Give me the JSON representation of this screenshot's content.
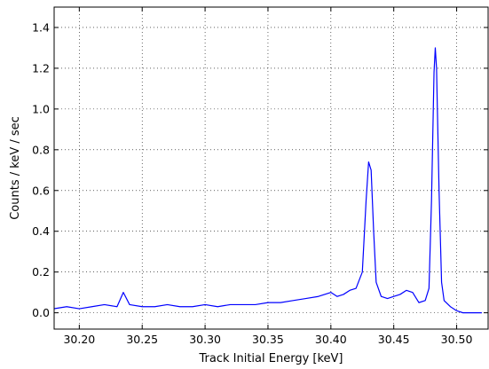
{
  "chart_data": {
    "type": "line",
    "title": "",
    "xlabel": "Track Initial Energy [keV]",
    "ylabel": "Counts / keV / sec",
    "xlim": [
      30.18,
      30.525
    ],
    "ylim": [
      -0.08,
      1.5
    ],
    "x_ticks": [
      30.2,
      30.25,
      30.3,
      30.35,
      30.4,
      30.45,
      30.5
    ],
    "x_tick_labels": [
      "30.20",
      "30.25",
      "30.30",
      "30.35",
      "30.40",
      "30.45",
      "30.50"
    ],
    "y_ticks": [
      0.0,
      0.2,
      0.4,
      0.6,
      0.8,
      1.0,
      1.2,
      1.4
    ],
    "y_tick_labels": [
      "0.0",
      "0.2",
      "0.4",
      "0.6",
      "0.8",
      "1.0",
      "1.2",
      "1.4"
    ],
    "grid": true,
    "legend": false,
    "series": [
      {
        "color": "#0000ff",
        "x": [
          30.18,
          30.19,
          30.2,
          30.21,
          30.22,
          30.23,
          30.235,
          30.24,
          30.25,
          30.26,
          30.27,
          30.28,
          30.29,
          30.3,
          30.31,
          30.32,
          30.33,
          30.34,
          30.35,
          30.36,
          30.37,
          30.38,
          30.39,
          30.395,
          30.4,
          30.405,
          30.41,
          30.415,
          30.42,
          30.425,
          30.428,
          30.43,
          30.432,
          30.434,
          30.436,
          30.44,
          30.445,
          30.45,
          30.455,
          30.46,
          30.465,
          30.47,
          30.475,
          30.478,
          30.48,
          30.482,
          30.483,
          30.484,
          30.486,
          30.488,
          30.49,
          30.495,
          30.5,
          30.505,
          30.51,
          30.52
        ],
        "y": [
          0.02,
          0.03,
          0.02,
          0.03,
          0.04,
          0.03,
          0.1,
          0.04,
          0.03,
          0.03,
          0.04,
          0.03,
          0.03,
          0.04,
          0.03,
          0.04,
          0.04,
          0.04,
          0.05,
          0.05,
          0.06,
          0.07,
          0.08,
          0.09,
          0.1,
          0.08,
          0.09,
          0.11,
          0.12,
          0.2,
          0.55,
          0.74,
          0.7,
          0.4,
          0.15,
          0.08,
          0.07,
          0.08,
          0.09,
          0.11,
          0.1,
          0.05,
          0.06,
          0.12,
          0.55,
          1.18,
          1.3,
          1.2,
          0.6,
          0.15,
          0.06,
          0.03,
          0.01,
          0.0,
          0.0,
          0.0
        ]
      }
    ]
  }
}
